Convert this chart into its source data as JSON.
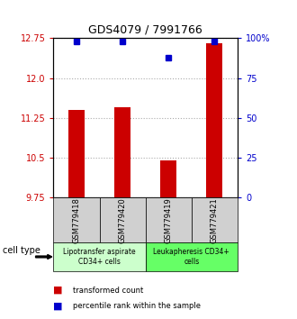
{
  "title": "GDS4079 / 7991766",
  "samples": [
    "GSM779418",
    "GSM779420",
    "GSM779419",
    "GSM779421"
  ],
  "transformed_counts": [
    11.4,
    11.45,
    10.45,
    12.65
  ],
  "percentile_ranks": [
    98,
    98,
    88,
    98
  ],
  "ylim_left": [
    9.75,
    12.75
  ],
  "yticks_left": [
    9.75,
    10.5,
    11.25,
    12.0,
    12.75
  ],
  "ylim_right": [
    0,
    100
  ],
  "yticks_right": [
    0,
    25,
    50,
    75,
    100
  ],
  "yticklabels_right": [
    "0",
    "25",
    "50",
    "75",
    "100%"
  ],
  "bar_color": "#cc0000",
  "dot_color": "#0000cc",
  "cell_type_groups": [
    {
      "label": "Lipotransfer aspirate\nCD34+ cells",
      "samples": [
        0,
        1
      ],
      "color": "#ccffcc"
    },
    {
      "label": "Leukapheresis CD34+\ncells",
      "samples": [
        2,
        3
      ],
      "color": "#66ff66"
    }
  ],
  "cell_type_label": "cell type",
  "legend_bar_label": "transformed count",
  "legend_dot_label": "percentile rank within the sample",
  "grid_color": "#aaaaaa",
  "bar_width": 0.35,
  "sample_box_color": "#d0d0d0",
  "sample_box_border": "#000000"
}
